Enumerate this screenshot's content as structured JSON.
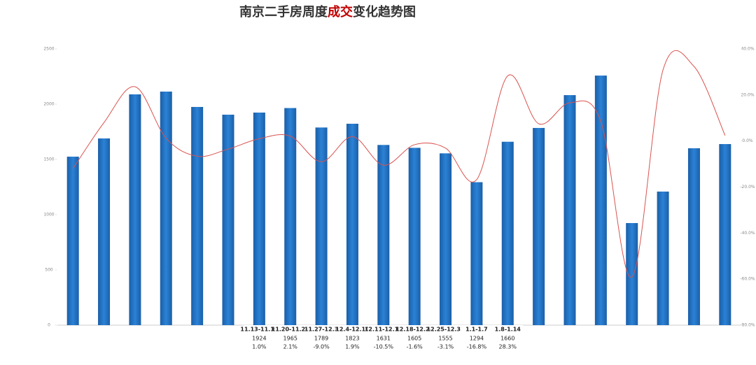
{
  "chart_data": {
    "type": "bar-line",
    "title": [
      "南京二手房周度",
      "成交",
      "变化趋势图"
    ],
    "categories": [
      null,
      null,
      null,
      null,
      null,
      null,
      "11.13-11.19",
      "11.20-11.26",
      "11.27-12.3",
      "12.4-12.10",
      "12.11-12.17",
      "12.18-12.24",
      "12.25-12.31",
      "1.1-1.7",
      "1.8-1.14",
      null,
      null,
      null,
      null,
      null,
      null,
      null
    ],
    "series": [
      {
        "name": null,
        "color": "#1f6fbf",
        "values": [
          1525,
          1690,
          2089,
          2114,
          1975,
          1905,
          1924,
          1965,
          1789,
          1823,
          1631,
          1605,
          1555,
          1294,
          1660,
          1785,
          2082,
          2259,
          924,
          1209,
          1601,
          1639
        ]
      },
      {
        "name": null,
        "color": "#d9534f",
        "axis": "y2",
        "values": [
          -12,
          8,
          23.6,
          1.2,
          -6.6,
          -3.5,
          1.0,
          2.1,
          -9.0,
          1.9,
          -10.5,
          -1.6,
          -3.1,
          -16.8,
          28.3,
          7.5,
          16.6,
          8.5,
          -59.1,
          30.8,
          32.4,
          2.4
        ],
        "value_labels": [
          null,
          null,
          null,
          null,
          null,
          null,
          "1.0%",
          "2.1%",
          "-9.0%",
          "1.9%",
          "-10.5%",
          "-1.6%",
          "-3.1%",
          "-16.8%",
          "28.3%",
          null,
          null,
          null,
          null,
          null,
          null,
          null
        ]
      }
    ],
    "ylim": [
      0,
      2500
    ],
    "yticks": [
      0,
      500,
      1000,
      1500,
      2000,
      2500
    ],
    "y2lim": [
      -80,
      40
    ],
    "y2ticks": [
      {
        "value": -80,
        "label": "-80.0%"
      },
      {
        "value": -60,
        "label": "-60.0%"
      },
      {
        "value": -40,
        "label": "-40.0%"
      },
      {
        "value": -20,
        "label": "-20.0%"
      },
      {
        "value": 0,
        "label": "0.0%"
      },
      {
        "value": 20,
        "label": "20.0%"
      },
      {
        "value": 40,
        "label": "40.0%"
      }
    ]
  }
}
